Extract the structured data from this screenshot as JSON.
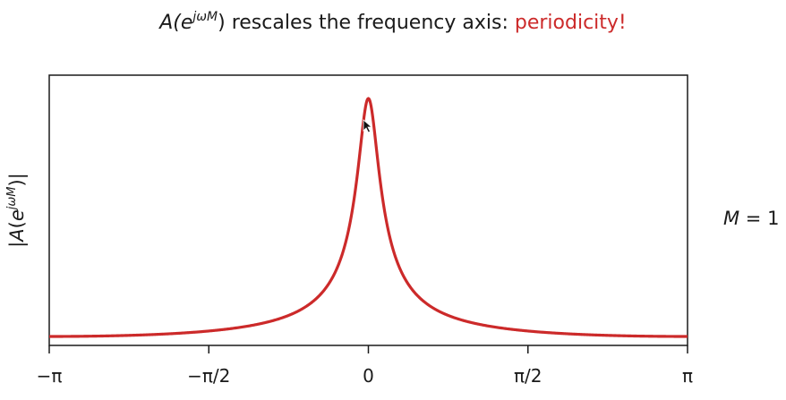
{
  "title": {
    "prefix_base": "A(e",
    "prefix_exp": "jωM",
    "prefix_close": ")",
    "middle": " rescales the frequency axis: ",
    "highlight": "periodicity!"
  },
  "m_label": {
    "name": "M",
    "eq": " = ",
    "value": "1"
  },
  "chart_data": {
    "type": "line",
    "ylabel": "|A(e^{jωM})|",
    "xlabel": "",
    "xlim": [
      -3.14159,
      3.14159
    ],
    "ylim": [
      0,
      1.0
    ],
    "x_ticks": [
      {
        "value": -3.14159,
        "label": "−π"
      },
      {
        "value": -1.5708,
        "label": "−π/2"
      },
      {
        "value": 0,
        "label": "0"
      },
      {
        "value": 1.5708,
        "label": "π/2"
      },
      {
        "value": 3.14159,
        "label": "π"
      }
    ],
    "y_ticks_shown": false,
    "grid": false,
    "series": [
      {
        "color": "#cc2a2a",
        "function": "abs(1/(1-0.9*exp(-j*omega*M)))",
        "M": 1,
        "pole": 0.9
      }
    ]
  },
  "colors": {
    "curve": "#cc2a2a",
    "highlight": "#cc2a2a",
    "axis": "#1a1a1a"
  },
  "cursor": "arrow-cursor-icon"
}
